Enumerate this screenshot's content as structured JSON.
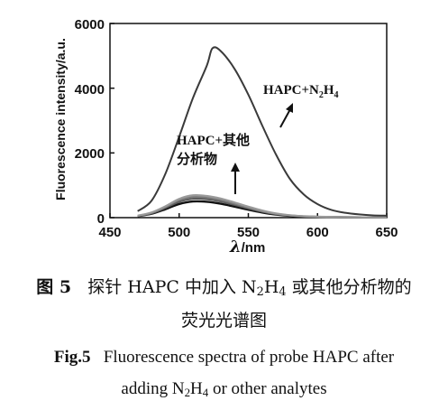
{
  "chart_data": {
    "type": "line",
    "ylabel": "Fluorescence intensity/a.u.",
    "xlabel_symbol": "λ",
    "xlabel_unit": "/nm",
    "xlim": [
      450,
      650
    ],
    "ylim": [
      0,
      6000
    ],
    "x_ticks": [
      "450",
      "500",
      "550",
      "600",
      "650"
    ],
    "y_ticks": [
      "0",
      "2000",
      "4000",
      "6000"
    ],
    "series": [
      {
        "x": [
          470,
          480,
          490,
          500,
          510,
          520,
          524,
          530,
          540,
          550,
          560,
          570,
          580,
          590,
          600,
          610,
          620,
          630,
          640,
          650
        ],
        "y": [
          200,
          520,
          1350,
          2500,
          3700,
          4700,
          5230,
          5150,
          4600,
          3800,
          2850,
          1950,
          1200,
          720,
          420,
          240,
          150,
          100,
          70,
          60
        ]
      },
      {
        "x": [
          470,
          480,
          490,
          500,
          510,
          520,
          530,
          540,
          550,
          560,
          570,
          580,
          590,
          600,
          620,
          650
        ],
        "y": [
          60,
          160,
          350,
          580,
          690,
          670,
          590,
          470,
          340,
          220,
          130,
          75,
          45,
          30,
          15,
          10
        ]
      },
      {
        "x": [
          470,
          480,
          490,
          500,
          510,
          520,
          530,
          540,
          550,
          560,
          570,
          580,
          590,
          600,
          620,
          650
        ],
        "y": [
          55,
          150,
          330,
          540,
          640,
          620,
          545,
          430,
          310,
          200,
          120,
          70,
          40,
          28,
          14,
          10
        ]
      },
      {
        "x": [
          470,
          480,
          490,
          500,
          510,
          520,
          530,
          540,
          550,
          560,
          570,
          580,
          590,
          600,
          620,
          650
        ],
        "y": [
          50,
          135,
          300,
          490,
          585,
          570,
          500,
          395,
          285,
          185,
          110,
          65,
          38,
          26,
          13,
          9
        ]
      },
      {
        "x": [
          470,
          480,
          490,
          500,
          510,
          520,
          530,
          540,
          550,
          560,
          570,
          580,
          590,
          600,
          620,
          650
        ],
        "y": [
          45,
          120,
          260,
          420,
          500,
          490,
          430,
          340,
          245,
          160,
          95,
          55,
          33,
          22,
          12,
          8
        ]
      }
    ],
    "annotations": {
      "main": [
        "HAPC+N",
        "2",
        "H",
        "4"
      ],
      "others_line1": "HAPC+其他",
      "others_line2": "分析物"
    }
  },
  "caption": {
    "cn_label": "图 5",
    "cn_pre": "探针 HAPC 中加入 N",
    "cn_sub1": "2",
    "cn_mid": "H",
    "cn_sub2": "4",
    "cn_post": " 或其他分析物的",
    "cn_line2": "荧光光谱图",
    "en_label": "Fig.5",
    "en_line1": "Fluorescence spectra of probe HAPC after",
    "en_line2_pre": "adding N",
    "en_sub1": "2",
    "en_mid": "H",
    "en_sub2": "4",
    "en_line2_post": " or other analytes"
  }
}
